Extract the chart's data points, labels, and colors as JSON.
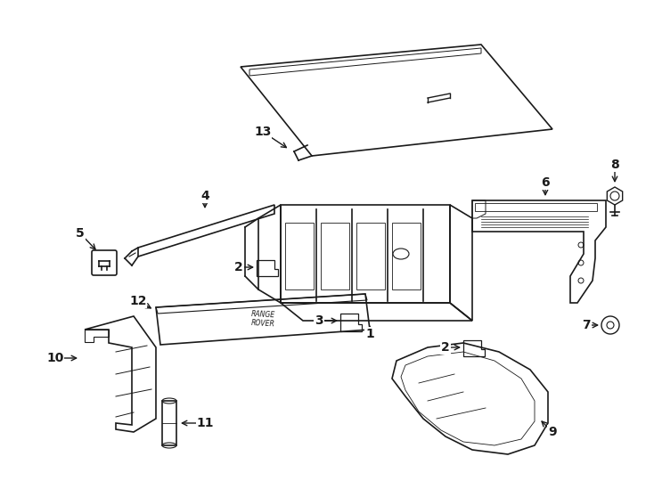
{
  "background_color": "#ffffff",
  "figure_width": 7.34,
  "figure_height": 5.4,
  "dpi": 100,
  "line_color": "#1a1a1a",
  "label_fontsize": 10,
  "line_width": 1.2
}
